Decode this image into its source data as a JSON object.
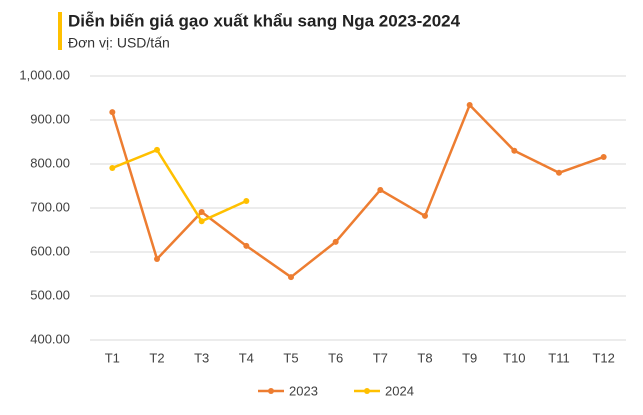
{
  "chart_data": {
    "type": "line",
    "title": "Diễn biến giá gạo xuất khẩu sang Nga 2023-2024",
    "subtitle": "Đơn vị: USD/tấn",
    "categories": [
      "T1",
      "T2",
      "T3",
      "T4",
      "T5",
      "T6",
      "T7",
      "T8",
      "T9",
      "T10",
      "T11",
      "T12"
    ],
    "series": [
      {
        "name": "2023",
        "color": "#ED7D31",
        "values": [
          918,
          584,
          691,
          614,
          543,
          623,
          741,
          682,
          934,
          830,
          780,
          816
        ]
      },
      {
        "name": "2024",
        "color": "#FFC000",
        "values": [
          791,
          832,
          670,
          716,
          null,
          null,
          null,
          null,
          null,
          null,
          null,
          null
        ]
      }
    ],
    "ylim": [
      400,
      1000
    ],
    "yticks": [
      {
        "value": 400,
        "label": "400.00"
      },
      {
        "value": 500,
        "label": "500.00"
      },
      {
        "value": 600,
        "label": "600.00"
      },
      {
        "value": 700,
        "label": "700.00"
      },
      {
        "value": 800,
        "label": "800.00"
      },
      {
        "value": 900,
        "label": "900.00"
      },
      {
        "value": 1000,
        "label": "1,000.00"
      }
    ],
    "grid": true,
    "legend": "bottom"
  }
}
